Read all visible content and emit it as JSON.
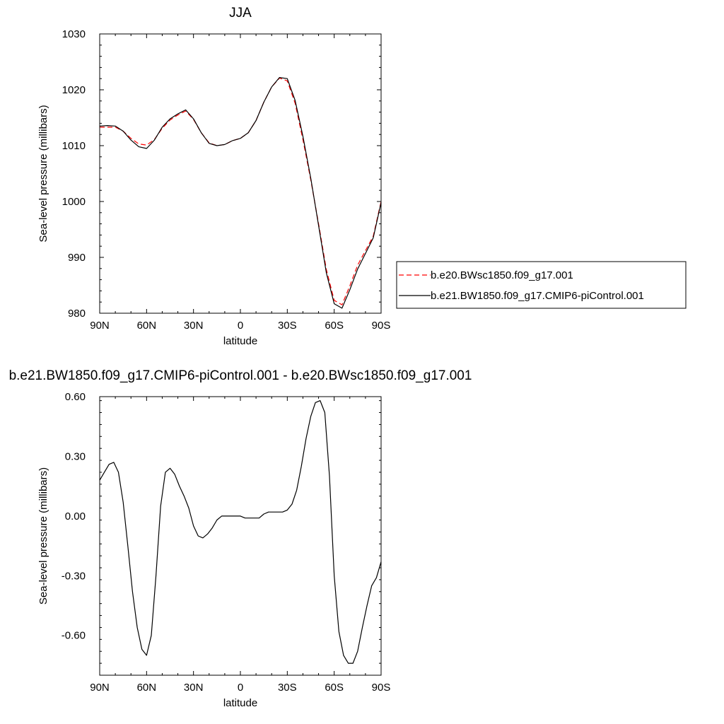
{
  "chart_data": [
    {
      "type": "line",
      "title": "JJA",
      "xlabel": "latitude",
      "ylabel": "Sea-level pressure (millibars)",
      "xlim": [
        90,
        -90
      ],
      "ylim": [
        980,
        1030
      ],
      "x_ticks": [
        90,
        60,
        30,
        0,
        -30,
        -60,
        -90
      ],
      "x_tick_labels": [
        "90N",
        "60N",
        "30N",
        "0",
        "30S",
        "60S",
        "90S"
      ],
      "y_ticks": [
        980,
        990,
        1000,
        1010,
        1020,
        1030
      ],
      "y_tick_labels": [
        "980",
        "990",
        "1000",
        "1010",
        "1020",
        "1030"
      ],
      "legend_position": "right",
      "series": [
        {
          "name": "b.e20.BWsc1850.f09_g17.001",
          "color": "#ff0000",
          "dash": "dashed",
          "x": [
            90,
            85,
            80,
            75,
            70,
            65,
            60,
            55,
            50,
            45,
            40,
            35,
            30,
            25,
            20,
            15,
            10,
            5,
            0,
            -5,
            -10,
            -15,
            -20,
            -25,
            -30,
            -35,
            -40,
            -45,
            -50,
            -55,
            -60,
            -65,
            -70,
            -75,
            -80,
            -85,
            -90
          ],
          "y": [
            1013.3,
            1013.3,
            1013.3,
            1012.6,
            1011.3,
            1010.3,
            1010.1,
            1011.1,
            1013.1,
            1014.6,
            1015.5,
            1016.2,
            1014.7,
            1012.3,
            1010.5,
            1010.0,
            1010.2,
            1010.9,
            1011.3,
            1012.3,
            1014.5,
            1017.8,
            1020.5,
            1022.1,
            1021.6,
            1017.6,
            1011.1,
            1003.9,
            996.0,
            987.8,
            982.3,
            981.5,
            984.9,
            988.6,
            991.2,
            993.8,
            1000.0
          ]
        },
        {
          "name": "b.e21.BW1850.f09_g17.CMIP6-piControl.001",
          "color": "#000000",
          "dash": "solid",
          "x": [
            90,
            85,
            80,
            75,
            70,
            65,
            60,
            55,
            50,
            45,
            40,
            35,
            30,
            25,
            20,
            15,
            10,
            5,
            0,
            -5,
            -10,
            -15,
            -20,
            -25,
            -30,
            -35,
            -40,
            -45,
            -50,
            -55,
            -60,
            -65,
            -70,
            -75,
            -80,
            -85,
            -90
          ],
          "y": [
            1013.5,
            1013.6,
            1013.5,
            1012.6,
            1011.0,
            1009.8,
            1009.5,
            1011.0,
            1013.3,
            1014.8,
            1015.7,
            1016.4,
            1014.8,
            1012.3,
            1010.4,
            1010.0,
            1010.2,
            1010.9,
            1011.3,
            1012.3,
            1014.5,
            1017.8,
            1020.5,
            1022.2,
            1022.0,
            1018.1,
            1011.7,
            1004.2,
            995.7,
            987.2,
            981.7,
            980.9,
            984.2,
            987.9,
            990.7,
            993.5,
            999.8
          ]
        }
      ]
    },
    {
      "type": "line",
      "title": "b.e21.BW1850.f09_g17.CMIP6-piControl.001 - b.e20.BWsc1850.f09_g17.001",
      "xlabel": "latitude",
      "ylabel": "Sea-level pressure (millibars)",
      "xlim": [
        90,
        -90
      ],
      "ylim": [
        -0.8,
        0.6
      ],
      "x_ticks": [
        90,
        60,
        30,
        0,
        -30,
        -60,
        -90
      ],
      "x_tick_labels": [
        "90N",
        "60N",
        "30N",
        "0",
        "30S",
        "60S",
        "90S"
      ],
      "y_ticks": [
        -0.6,
        -0.3,
        0.0,
        0.3,
        0.6
      ],
      "y_tick_labels": [
        "-0.60",
        "-0.30",
        "0.00",
        "0.30",
        "0.60"
      ],
      "series": [
        {
          "color": "#000000",
          "dash": "solid",
          "x": [
            90,
            87,
            84,
            81,
            78,
            75,
            72,
            69,
            66,
            63,
            60,
            57,
            54,
            51,
            48,
            45,
            42,
            39,
            36,
            33,
            30,
            27,
            24,
            21,
            18,
            15,
            12,
            9,
            6,
            3,
            0,
            -3,
            -6,
            -9,
            -12,
            -15,
            -18,
            -21,
            -24,
            -27,
            -30,
            -33,
            -36,
            -39,
            -42,
            -45,
            -48,
            -51,
            -54,
            -57,
            -60,
            -63,
            -66,
            -69,
            -72,
            -75,
            -78,
            -81,
            -84,
            -87,
            -90
          ],
          "y": [
            0.18,
            0.22,
            0.26,
            0.27,
            0.22,
            0.07,
            -0.15,
            -0.38,
            -0.56,
            -0.67,
            -0.7,
            -0.6,
            -0.3,
            0.05,
            0.22,
            0.24,
            0.21,
            0.15,
            0.1,
            0.04,
            -0.05,
            -0.1,
            -0.11,
            -0.09,
            -0.06,
            -0.02,
            0.0,
            0.0,
            0.0,
            0.0,
            0.0,
            -0.01,
            -0.01,
            -0.01,
            -0.01,
            0.01,
            0.02,
            0.02,
            0.02,
            0.02,
            0.03,
            0.06,
            0.13,
            0.25,
            0.39,
            0.5,
            0.57,
            0.58,
            0.52,
            0.2,
            -0.3,
            -0.58,
            -0.7,
            -0.74,
            -0.74,
            -0.68,
            -0.56,
            -0.45,
            -0.35,
            -0.31,
            -0.23
          ]
        }
      ]
    }
  ],
  "legend": {
    "entries": [
      {
        "label": "b.e20.BWsc1850.f09_g17.001",
        "color": "#ff0000",
        "dash": "dashed"
      },
      {
        "label": "b.e21.BW1850.f09_g17.CMIP6-piControl.001",
        "color": "#000000",
        "dash": "solid"
      }
    ]
  }
}
